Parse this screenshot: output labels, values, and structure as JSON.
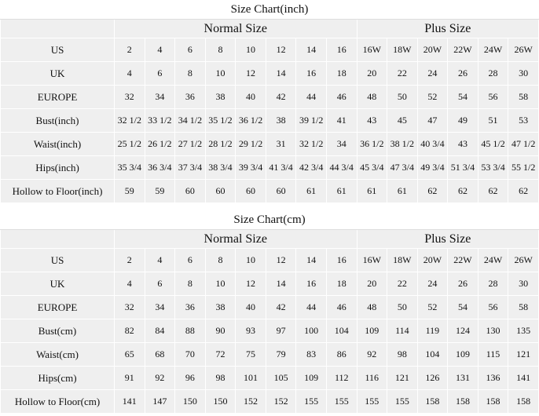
{
  "tables": [
    {
      "title": "Size Chart(inch)",
      "groups": [
        "Normal Size",
        "Plus Size"
      ],
      "rows": [
        {
          "label": "US",
          "values": [
            2,
            4,
            6,
            8,
            10,
            12,
            14,
            16,
            "16W",
            "18W",
            "20W",
            "22W",
            "24W",
            "26W"
          ]
        },
        {
          "label": "UK",
          "values": [
            4,
            6,
            8,
            10,
            12,
            14,
            16,
            18,
            20,
            22,
            24,
            26,
            28,
            30
          ]
        },
        {
          "label": "EUROPE",
          "values": [
            32,
            34,
            36,
            38,
            40,
            42,
            44,
            46,
            48,
            50,
            52,
            54,
            56,
            58
          ]
        },
        {
          "label": "Bust(inch)",
          "values": [
            "32 1/2",
            "33 1/2",
            "34 1/2",
            "35 1/2",
            "36 1/2",
            38,
            "39 1/2",
            41,
            43,
            45,
            47,
            49,
            51,
            53
          ]
        },
        {
          "label": "Waist(inch)",
          "values": [
            "25 1/2",
            "26 1/2",
            "27 1/2",
            "28 1/2",
            "29 1/2",
            31,
            "32 1/2",
            34,
            "36 1/2",
            "38 1/2",
            "40 3/4",
            43,
            "45 1/2",
            "47 1/2"
          ]
        },
        {
          "label": "Hips(inch)",
          "values": [
            "35 3/4",
            "36 3/4",
            "37 3/4",
            "38 3/4",
            "39 3/4",
            "41 3/4",
            "42 3/4",
            "44 3/4",
            "45 3/4",
            "47 3/4",
            "49 3/4",
            "51 3/4",
            "53 3/4",
            "55 1/2"
          ]
        },
        {
          "label": "Hollow to Floor(inch)",
          "values": [
            59,
            59,
            60,
            60,
            60,
            60,
            61,
            61,
            61,
            61,
            62,
            62,
            62,
            62
          ]
        }
      ]
    },
    {
      "title": "Size Chart(cm)",
      "groups": [
        "Normal Size",
        "Plus Size"
      ],
      "rows": [
        {
          "label": "US",
          "values": [
            2,
            4,
            6,
            8,
            10,
            12,
            14,
            16,
            "16W",
            "18W",
            "20W",
            "22W",
            "24W",
            "26W"
          ]
        },
        {
          "label": "UK",
          "values": [
            4,
            6,
            8,
            10,
            12,
            14,
            16,
            18,
            20,
            22,
            24,
            26,
            28,
            30
          ]
        },
        {
          "label": "EUROPE",
          "values": [
            32,
            34,
            36,
            38,
            40,
            42,
            44,
            46,
            48,
            50,
            52,
            54,
            56,
            58
          ]
        },
        {
          "label": "Bust(cm)",
          "values": [
            82,
            84,
            88,
            90,
            93,
            97,
            100,
            104,
            109,
            114,
            119,
            124,
            130,
            135
          ]
        },
        {
          "label": "Waist(cm)",
          "values": [
            65,
            68,
            70,
            72,
            75,
            79,
            83,
            86,
            92,
            98,
            104,
            109,
            115,
            121
          ]
        },
        {
          "label": "Hips(cm)",
          "values": [
            91,
            92,
            96,
            98,
            101,
            105,
            109,
            112,
            116,
            121,
            126,
            131,
            136,
            141
          ]
        },
        {
          "label": "Hollow to Floor(cm)",
          "values": [
            141,
            147,
            150,
            150,
            152,
            152,
            155,
            155,
            155,
            155,
            158,
            158,
            158,
            158
          ]
        }
      ]
    }
  ]
}
